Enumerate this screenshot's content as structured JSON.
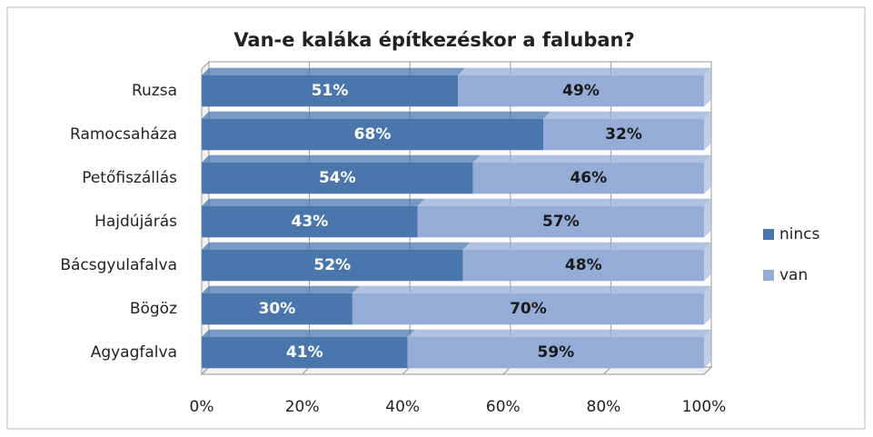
{
  "chart_data": {
    "type": "bar",
    "orientation": "horizontal",
    "stacked": true,
    "title": "Van-e kaláka építkezéskor a faluban?",
    "categories": [
      "Ruzsa",
      "Ramocsaháza",
      "Petőfiszállás",
      "Hajdújárás",
      "Bácsgyulafalva",
      "Bögöz",
      "Agyagfalva"
    ],
    "series": [
      {
        "name": "nincs",
        "color": "#4a76ae",
        "label_color": "#ffffff",
        "values": [
          51,
          68,
          54,
          43,
          52,
          30,
          41
        ],
        "value_labels": [
          "51%",
          "68%",
          "54%",
          "43%",
          "52%",
          "30%",
          "41%"
        ]
      },
      {
        "name": "van",
        "color": "#95acd6",
        "label_color": "#1a1a1a",
        "values": [
          49,
          32,
          46,
          57,
          48,
          70,
          59
        ],
        "value_labels": [
          "49%",
          "32%",
          "46%",
          "57%",
          "48%",
          "70%",
          "59%"
        ]
      }
    ],
    "xlim": [
      0,
      100
    ],
    "xticks": [
      {
        "value": 0,
        "label": "0%"
      },
      {
        "value": 20,
        "label": "20%"
      },
      {
        "value": 40,
        "label": "40%"
      },
      {
        "value": 60,
        "label": "60%"
      },
      {
        "value": 80,
        "label": "80%"
      },
      {
        "value": 100,
        "label": "100%"
      }
    ],
    "grid": true,
    "legend": "right"
  }
}
